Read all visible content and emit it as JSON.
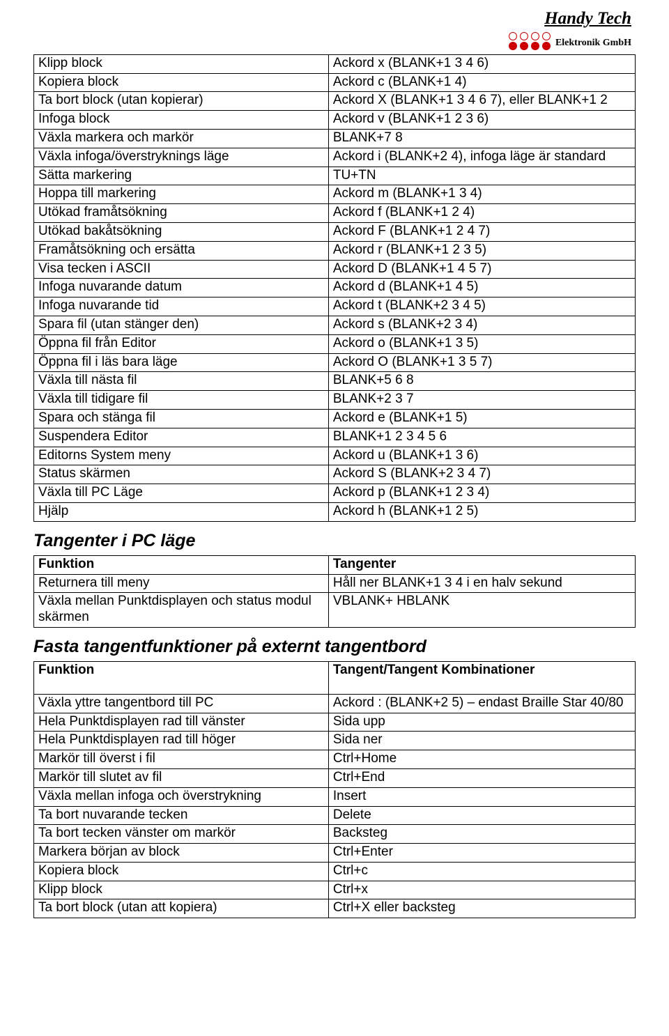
{
  "brand": {
    "title": "Handy Tech",
    "subtitle": "Elektronik GmbH"
  },
  "table1": {
    "rows": [
      [
        "Klipp block",
        "Ackord x (BLANK+1 3 4 6)"
      ],
      [
        "Kopiera block",
        "Ackord c (BLANK+1 4)"
      ],
      [
        "Ta bort block (utan kopierar)",
        "Ackord X (BLANK+1 3 4 6 7), eller BLANK+1 2"
      ],
      [
        "Infoga block",
        "Ackord v (BLANK+1 2 3 6)"
      ],
      [
        "Växla markera och markör",
        "BLANK+7 8"
      ],
      [
        "Växla infoga/överstryknings läge",
        "Ackord i (BLANK+2 4), infoga läge är standard"
      ],
      [
        "Sätta markering",
        "TU+TN"
      ],
      [
        "Hoppa till markering",
        "Ackord m (BLANK+1 3 4)"
      ],
      [
        "Utökad framåtsökning",
        "Ackord f (BLANK+1 2 4)"
      ],
      [
        "Utökad bakåtsökning",
        "Ackord F (BLANK+1 2 4 7)"
      ],
      [
        "Framåtsökning och ersätta",
        "Ackord r (BLANK+1 2 3 5)"
      ],
      [
        "Visa tecken i ASCII",
        "Ackord D (BLANK+1 4 5 7)"
      ],
      [
        "Infoga nuvarande datum",
        "Ackord d (BLANK+1 4 5)"
      ],
      [
        "Infoga nuvarande tid",
        "Ackord t (BLANK+2 3 4 5)"
      ],
      [
        "Spara fil (utan stänger den)",
        "Ackord s (BLANK+2 3 4)"
      ],
      [
        "Öppna fil från Editor",
        "Ackord o (BLANK+1 3 5)"
      ],
      [
        "Öppna fil i läs bara läge",
        "Ackord O (BLANK+1 3 5 7)"
      ],
      [
        "Växla till nästa fil",
        "BLANK+5 6 8"
      ],
      [
        "Växla till tidigare fil",
        "BLANK+2 3 7"
      ],
      [
        "Spara och stänga fil",
        "Ackord e (BLANK+1 5)"
      ],
      [
        "Suspendera Editor",
        "BLANK+1 2 3 4 5 6"
      ],
      [
        "Editorns System meny",
        "Ackord u (BLANK+1 3 6)"
      ],
      [
        "Status skärmen",
        "Ackord S (BLANK+2 3 4 7)"
      ],
      [
        "Växla till PC Läge",
        "Ackord p (BLANK+1 2 3 4)"
      ],
      [
        "Hjälp",
        "Ackord h (BLANK+1 2 5)"
      ]
    ]
  },
  "section2": {
    "title": "Tangenter i PC läge"
  },
  "table2": {
    "header": [
      "Funktion",
      "Tangenter"
    ],
    "rows": [
      [
        "Returnera till meny",
        "Håll ner BLANK+1 3 4 i en halv sekund"
      ],
      [
        "Växla mellan Punktdisplayen och status modul skärmen",
        "VBLANK+ HBLANK"
      ]
    ]
  },
  "section3": {
    "title": "Fasta tangentfunktioner på externt tangentbord"
  },
  "table3": {
    "header": [
      "Funktion",
      "Tangent/Tangent Kombinationer"
    ],
    "rows": [
      [
        "Växla yttre tangentbord till PC",
        "Ackord : (BLANK+2 5) – endast Braille Star 40/80"
      ],
      [
        "Hela Punktdisplayen rad till vänster",
        "Sida upp"
      ],
      [
        "Hela Punktdisplayen rad till höger",
        "Sida ner"
      ],
      [
        "Markör till överst i fil",
        "Ctrl+Home"
      ],
      [
        "Markör till slutet av fil",
        "Ctrl+End"
      ],
      [
        "Växla mellan infoga och överstrykning",
        "Insert"
      ],
      [
        "Ta bort nuvarande tecken",
        "Delete"
      ],
      [
        "Ta bort tecken vänster om markör",
        "Backsteg"
      ],
      [
        "Markera början av block",
        "Ctrl+Enter"
      ],
      [
        "Kopiera block",
        "Ctrl+c"
      ],
      [
        "Klipp block",
        "Ctrl+x"
      ],
      [
        "Ta bort block (utan att kopiera)",
        "Ctrl+X eller backsteg"
      ]
    ]
  }
}
